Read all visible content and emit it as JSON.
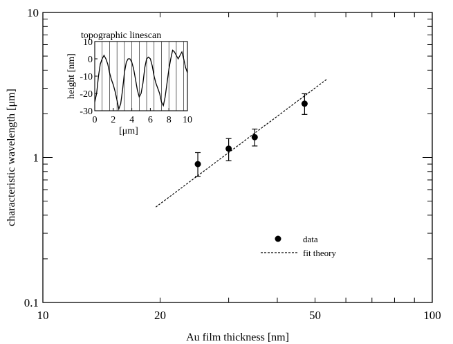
{
  "chart_data": [
    {
      "type": "scatter",
      "xlabel": "Au film thickness [nm]",
      "ylabel": "characteristic wavelength [μm]",
      "x_scale": "log",
      "y_scale": "log",
      "xlim": [
        10,
        100
      ],
      "ylim": [
        0.1,
        10
      ],
      "x_ticks": [
        10,
        20,
        50,
        100
      ],
      "x_tick_labels": [
        "10",
        "20",
        "50",
        "100"
      ],
      "y_ticks": [
        0.1,
        1,
        10
      ],
      "y_tick_labels": [
        "0.1",
        "1",
        "10"
      ],
      "series": [
        {
          "name": "data",
          "style": "markers-with-errorbars",
          "points": [
            {
              "x": 25,
              "y": 0.9,
              "err_low": 0.74,
              "err_high": 1.08
            },
            {
              "x": 30,
              "y": 1.15,
              "err_low": 0.95,
              "err_high": 1.35
            },
            {
              "x": 35,
              "y": 1.38,
              "err_low": 1.2,
              "err_high": 1.57
            },
            {
              "x": 47,
              "y": 2.35,
              "err_low": 1.98,
              "err_high": 2.75
            }
          ]
        },
        {
          "name": "fit theory",
          "style": "dashed-line",
          "points": [
            {
              "x": 19.5,
              "y": 0.455
            },
            {
              "x": 53.5,
              "y": 3.45
            }
          ]
        }
      ],
      "legend": {
        "placement": "lower-right",
        "entries": [
          "data",
          "fit theory"
        ]
      }
    },
    {
      "type": "line",
      "title": "topographic linescan",
      "xlabel": "[μm]",
      "ylabel": "height [nm]",
      "xlim": [
        0,
        10
      ],
      "ylim": [
        -30,
        10
      ],
      "x_ticks": [
        0,
        2,
        4,
        6,
        8,
        10
      ],
      "y_ticks": [
        10,
        0,
        -10,
        -20,
        -30
      ],
      "vertical_gridlines_at": [
        0.8,
        1.6,
        2.4,
        3.2,
        4.0,
        4.8,
        5.6,
        6.4,
        7.2,
        8.0,
        8.8,
        9.6
      ],
      "x": [
        0,
        0.2,
        0.4,
        0.6,
        0.8,
        1.0,
        1.2,
        1.4,
        1.6,
        1.8,
        2.0,
        2.2,
        2.4,
        2.6,
        2.8,
        3.0,
        3.2,
        3.4,
        3.6,
        3.8,
        4.0,
        4.2,
        4.4,
        4.6,
        4.8,
        5.0,
        5.2,
        5.4,
        5.6,
        5.8,
        6.0,
        6.2,
        6.4,
        6.6,
        6.8,
        7.0,
        7.2,
        7.4,
        7.6,
        7.8,
        8.0,
        8.2,
        8.4,
        8.6,
        8.8,
        9.0,
        9.2,
        9.4,
        9.6,
        9.8,
        10.0
      ],
      "y": [
        -25,
        -20,
        -10,
        -3,
        0,
        2,
        0,
        -3,
        -8,
        -12,
        -15,
        -19,
        -24,
        -29,
        -26,
        -18,
        -8,
        -2,
        0,
        0,
        -2,
        -6,
        -12,
        -18,
        -22,
        -20,
        -14,
        -5,
        0,
        1,
        0,
        -4,
        -10,
        -14,
        -17,
        -20,
        -25,
        -27,
        -22,
        -14,
        -6,
        0,
        5,
        4,
        2,
        0,
        2,
        4,
        0,
        -5,
        -8
      ]
    }
  ]
}
